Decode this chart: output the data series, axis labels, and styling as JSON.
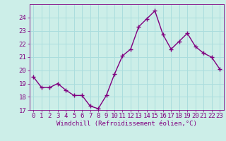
{
  "x": [
    0,
    1,
    2,
    3,
    4,
    5,
    6,
    7,
    8,
    9,
    10,
    11,
    12,
    13,
    14,
    15,
    16,
    17,
    18,
    19,
    20,
    21,
    22,
    23
  ],
  "y": [
    19.5,
    18.7,
    18.7,
    19.0,
    18.5,
    18.1,
    18.1,
    17.3,
    17.1,
    18.1,
    19.7,
    21.1,
    21.6,
    23.3,
    23.9,
    24.5,
    22.7,
    21.6,
    22.2,
    22.8,
    21.8,
    21.3,
    21.0,
    20.1
  ],
  "line_color": "#800080",
  "marker": "+",
  "markersize": 4,
  "linewidth": 1.0,
  "bg_color": "#cceee8",
  "grid_color": "#aadddd",
  "xlabel": "Windchill (Refroidissement éolien,°C)",
  "xlabel_color": "#800080",
  "xlabel_fontsize": 6.5,
  "tick_color": "#800080",
  "tick_fontsize": 6.5,
  "ylim": [
    17,
    25
  ],
  "yticks": [
    17,
    18,
    19,
    20,
    21,
    22,
    23,
    24
  ],
  "xlim": [
    -0.5,
    23.5
  ],
  "xticks": [
    0,
    1,
    2,
    3,
    4,
    5,
    6,
    7,
    8,
    9,
    10,
    11,
    12,
    13,
    14,
    15,
    16,
    17,
    18,
    19,
    20,
    21,
    22,
    23
  ]
}
